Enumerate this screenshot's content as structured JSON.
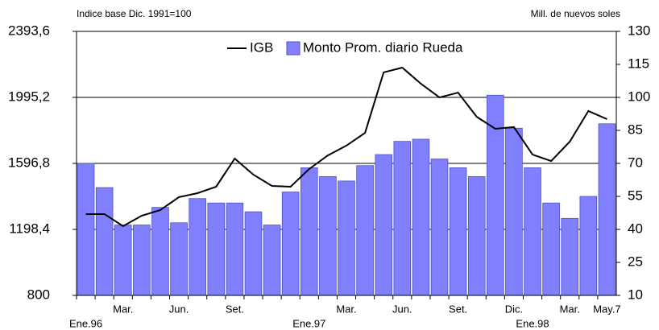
{
  "chart_data": {
    "type": "bar-line",
    "left_axis_label": "Indice base Dic. 1991=100",
    "right_axis_label": "Mill. de nuevos soles",
    "categories": [
      "Ene.96",
      null,
      "Mar.",
      null,
      null,
      "Jun.",
      null,
      null,
      "Set.",
      null,
      null,
      null,
      "Ene.97",
      null,
      "Mar.",
      null,
      null,
      "Jun.",
      null,
      null,
      "Set.",
      null,
      null,
      "Dic.",
      "Ene.98",
      null,
      "Mar.",
      null,
      "May.7"
    ],
    "series": [
      {
        "name": "Monto Prom. diario Rueda",
        "type": "bar",
        "axis": "y2",
        "color": "#8080ff",
        "values": [
          70,
          59,
          42,
          42,
          50,
          43,
          54,
          52,
          52,
          48,
          42,
          57,
          68,
          64,
          62,
          69,
          74,
          80,
          81,
          72,
          68,
          64,
          101,
          86,
          68,
          52,
          45,
          55,
          88
        ]
      },
      {
        "name": "IGB",
        "type": "line",
        "axis": "y",
        "color": "#000000",
        "values": [
          1291,
          1291,
          1218,
          1281,
          1315,
          1393,
          1417,
          1456,
          1626,
          1529,
          1461,
          1456,
          1563,
          1645,
          1704,
          1781,
          2146,
          2175,
          2078,
          1995,
          2024,
          1878,
          1806,
          1816,
          1650,
          1611,
          1728,
          1913,
          1864
        ]
      }
    ],
    "ylim": [
      800,
      2393.6
    ],
    "yticks": [
      800,
      {
        "value": 1198.4,
        "label": "1198,4"
      },
      {
        "value": 1596.8,
        "label": "1596,8"
      },
      {
        "value": 1995.2,
        "label": "1995,2"
      },
      {
        "value": 2393.6,
        "label": "2393,6"
      }
    ],
    "y2lim": [
      10,
      130
    ],
    "y2ticks": [
      10,
      25,
      40,
      55,
      70,
      85,
      100,
      115,
      130
    ],
    "grid": true
  }
}
